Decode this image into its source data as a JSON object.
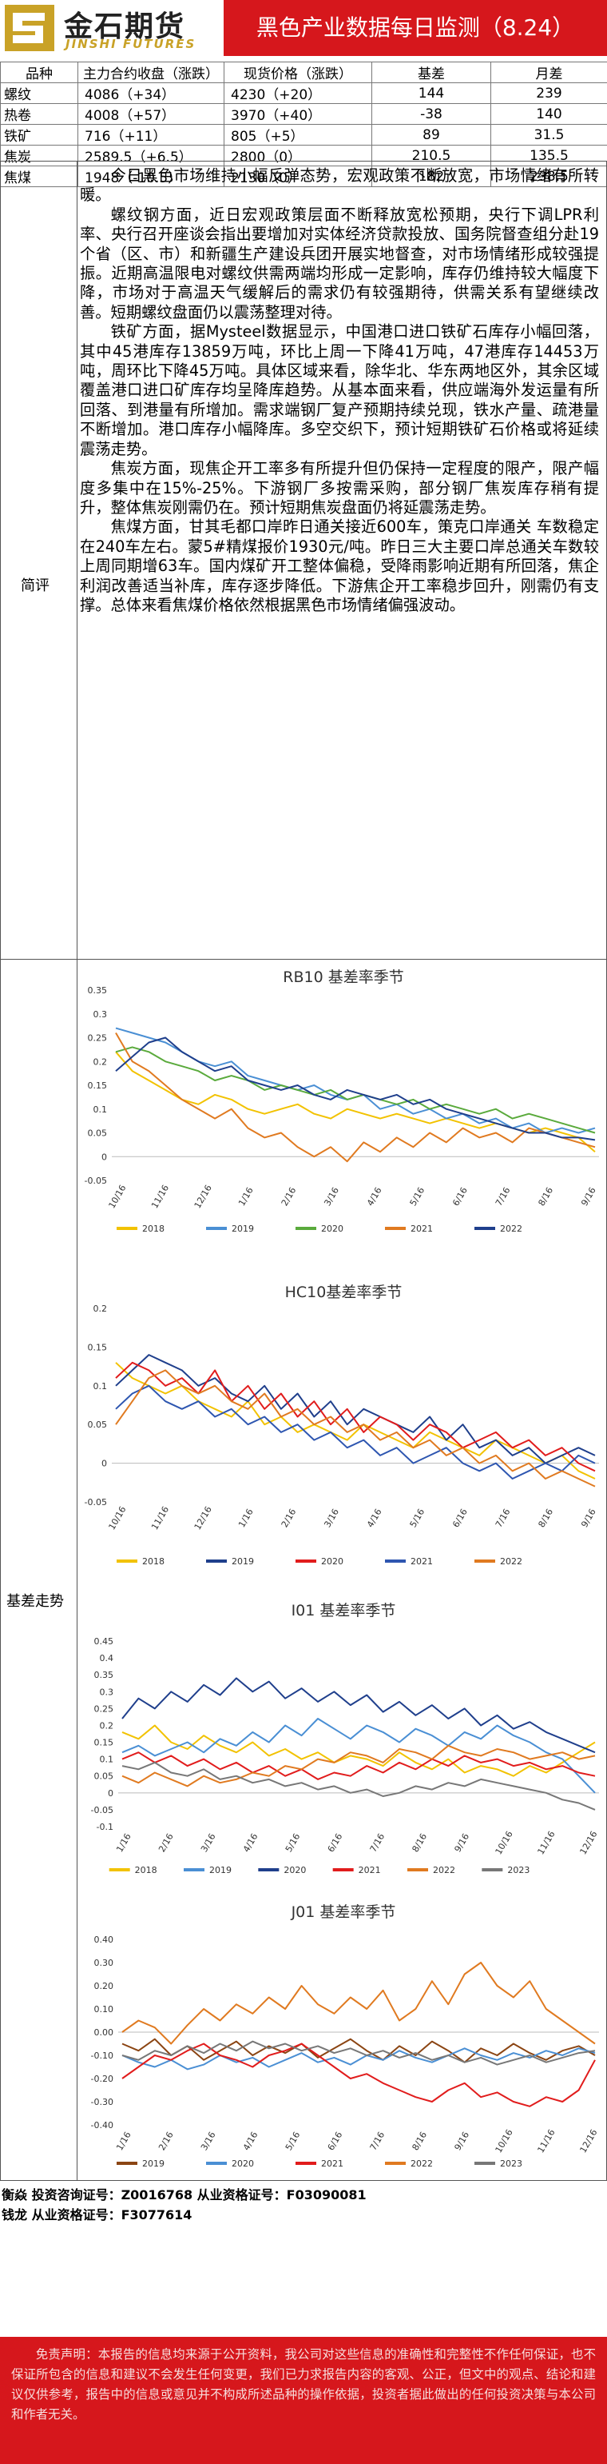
{
  "header": {
    "logo_cn": "金石期货",
    "logo_en": "JINSHI FUTURES",
    "title": "黑色产业数据每日监测（8.24）"
  },
  "quote_table": {
    "headers": [
      "品种",
      "主力合约收盘（涨跌）",
      "现货价格（涨跌）",
      "基差",
      "月差"
    ],
    "rows": [
      [
        "螺纹",
        "4086（+34）",
        "4230（+20）",
        "144",
        "239"
      ],
      [
        "热卷",
        "4008（+57）",
        "3970（+40）",
        "-38",
        "140"
      ],
      [
        "铁矿",
        "716（+11）",
        "805（+5）",
        "89",
        "31.5"
      ],
      [
        "焦炭",
        "2589.5（+6.5）",
        "2800（0）",
        "210.5",
        "135.5"
      ],
      [
        "焦煤",
        "1948（-10.5）",
        "2130（0）",
        "182",
        "238.5"
      ]
    ]
  },
  "comment": {
    "label": "简评",
    "paragraphs": [
      "今日黑色市场维持小幅反弹态势，宏观政策不断放宽，市场情绪有所转暖。",
      "螺纹钢方面，近日宏观政策层面不断释放宽松预期，央行下调LPR利率、央行召开座谈会指出要增加对实体经济贷款投放、国务院督查组分赴19个省（区、市）和新疆生产建设兵团开展实地督查，对市场情绪形成较强提振。近期高温限电对螺纹供需两端均形成一定影响，库存仍维持较大幅度下降，市场对于高温天气缓解后的需求仍有较强期待，供需关系有望继续改善。短期螺纹盘面仍以震荡整理对待。",
      "铁矿方面，据Mysteel数据显示，中国港口进口铁矿石库存小幅回落，其中45港库存13859万吨，环比上周一下降41万吨，47港库存14453万吨，周环比下降45万吨。具体区域来看，除华北、华东两地区外，其余区域覆盖港口进口矿库存均呈降库趋势。从基本面来看，供应端海外发运量有所回落、到港量有所增加。需求端钢厂复产预期持续兑现，铁水产量、疏港量不断增加。港口库存小幅降库。多空交织下，预计短期铁矿石价格或将延续震荡走势。",
      "焦炭方面，现焦企开工率多有所提升但仍保持一定程度的限产，限产幅度多集中在15%-25%。下游钢厂多按需采购，部分钢厂焦炭库存稍有提升，整体焦炭刚需仍在。预计短期焦炭盘面仍将延震荡走势。",
      "焦煤方面，甘其毛都口岸昨日通关接近600车，策克口岸通关 车数稳定在240车左右。蒙5#精煤报价1930元/吨。昨日三大主要口岸总通关车数较上周同期增63车。国内煤矿开工整体偏稳，受降雨影响近期有所回落，焦企利润改善适当补库，库存逐步降低。下游焦企开工率稳步回升，刚需仍有支撑。总体来看焦煤价格依然根据黑色市场情绪偏强波动。"
    ]
  },
  "basis_label": "基差走势",
  "chart_data": [
    {
      "type": "line",
      "title": "RB10 基差率季节",
      "y_ticks": [
        "0.35",
        "0.3",
        "0.25",
        "0.2",
        "0.15",
        "0.1",
        "0.05",
        "0",
        "-0.05"
      ],
      "ylim": [
        -0.05,
        0.35
      ],
      "x_ticks": [
        "10/16",
        "11/16",
        "12/16",
        "1/16",
        "2/16",
        "3/16",
        "4/16",
        "5/16",
        "6/16",
        "7/16",
        "8/16",
        "9/16"
      ],
      "series": [
        {
          "name": "2018",
          "color": "#f2c200",
          "values": [
            0.22,
            0.18,
            0.16,
            0.14,
            0.12,
            0.11,
            0.13,
            0.12,
            0.1,
            0.09,
            0.1,
            0.11,
            0.09,
            0.08,
            0.1,
            0.09,
            0.08,
            0.09,
            0.08,
            0.07,
            0.08,
            0.07,
            0.06,
            0.07,
            0.06,
            0.05,
            0.06,
            0.05,
            0.04,
            0.01
          ]
        },
        {
          "name": "2019",
          "color": "#4a8fd4",
          "values": [
            0.27,
            0.26,
            0.25,
            0.24,
            0.22,
            0.2,
            0.19,
            0.2,
            0.17,
            0.16,
            0.15,
            0.14,
            0.15,
            0.13,
            0.12,
            0.13,
            0.1,
            0.11,
            0.09,
            0.1,
            0.08,
            0.09,
            0.07,
            0.08,
            0.06,
            0.07,
            0.05,
            0.06,
            0.05,
            0.06
          ]
        },
        {
          "name": "2020",
          "color": "#5aaa3c",
          "values": [
            0.22,
            0.23,
            0.22,
            0.2,
            0.19,
            0.18,
            0.16,
            0.17,
            0.16,
            0.14,
            0.15,
            0.14,
            0.13,
            0.14,
            0.12,
            0.13,
            0.12,
            0.11,
            0.12,
            0.1,
            0.11,
            0.1,
            0.09,
            0.1,
            0.08,
            0.09,
            0.08,
            0.07,
            0.06,
            0.05
          ]
        },
        {
          "name": "2021",
          "color": "#e07a20",
          "values": [
            0.26,
            0.2,
            0.18,
            0.15,
            0.12,
            0.1,
            0.08,
            0.1,
            0.06,
            0.04,
            0.05,
            0.02,
            0.0,
            0.02,
            -0.01,
            0.03,
            0.01,
            0.04,
            0.02,
            0.05,
            0.03,
            0.06,
            0.04,
            0.05,
            0.03,
            0.06,
            0.05,
            0.04,
            0.03,
            0.02
          ]
        },
        {
          "name": "2022",
          "color": "#1f3f8c",
          "values": [
            0.18,
            0.21,
            0.24,
            0.25,
            0.22,
            0.2,
            0.18,
            0.19,
            0.16,
            0.15,
            0.14,
            0.15,
            0.13,
            0.12,
            0.14,
            0.13,
            0.12,
            0.13,
            0.11,
            0.12,
            0.1,
            0.09,
            0.08,
            0.07,
            0.06,
            0.05,
            0.05,
            0.04,
            0.04,
            0.035
          ]
        }
      ]
    },
    {
      "type": "line",
      "title": "HC10基差率季节",
      "y_ticks": [
        "0.2",
        "0.15",
        "0.1",
        "0.05",
        "0",
        "-0.05"
      ],
      "ylim": [
        -0.05,
        0.2
      ],
      "x_ticks": [
        "10/16",
        "11/16",
        "12/16",
        "1/16",
        "2/16",
        "3/16",
        "4/16",
        "5/16",
        "6/16",
        "7/16",
        "8/16",
        "9/16"
      ],
      "series": [
        {
          "name": "2018",
          "color": "#f2c200",
          "values": [
            0.13,
            0.11,
            0.1,
            0.09,
            0.1,
            0.08,
            0.07,
            0.06,
            0.08,
            0.05,
            0.06,
            0.04,
            0.05,
            0.04,
            0.03,
            0.05,
            0.04,
            0.03,
            0.02,
            0.04,
            0.03,
            0.02,
            0.01,
            0.03,
            0.02,
            0.01,
            0.0,
            0.01,
            -0.01,
            -0.02
          ]
        },
        {
          "name": "2019",
          "color": "#1f3f8c",
          "values": [
            0.1,
            0.12,
            0.14,
            0.13,
            0.12,
            0.1,
            0.11,
            0.09,
            0.08,
            0.1,
            0.07,
            0.09,
            0.06,
            0.08,
            0.05,
            0.07,
            0.06,
            0.05,
            0.04,
            0.06,
            0.03,
            0.05,
            0.02,
            0.03,
            0.01,
            0.02,
            0.0,
            0.01,
            0.02,
            0.01
          ]
        },
        {
          "name": "2020",
          "color": "#e11c1c",
          "values": [
            0.11,
            0.13,
            0.12,
            0.1,
            0.11,
            0.09,
            0.12,
            0.08,
            0.1,
            0.07,
            0.09,
            0.06,
            0.08,
            0.05,
            0.07,
            0.04,
            0.06,
            0.05,
            0.03,
            0.05,
            0.04,
            0.02,
            0.03,
            0.04,
            0.02,
            0.03,
            0.01,
            0.02,
            0.0,
            -0.01
          ]
        },
        {
          "name": "2021",
          "color": "#2e56b0",
          "values": [
            0.07,
            0.09,
            0.1,
            0.08,
            0.07,
            0.08,
            0.06,
            0.07,
            0.05,
            0.06,
            0.04,
            0.05,
            0.03,
            0.04,
            0.02,
            0.03,
            0.01,
            0.02,
            0.0,
            0.01,
            0.02,
            0.0,
            -0.01,
            0.0,
            -0.02,
            -0.01,
            0.0,
            -0.01,
            0.01,
            0.0
          ]
        },
        {
          "name": "2022",
          "color": "#e07a20",
          "values": [
            0.05,
            0.08,
            0.11,
            0.12,
            0.1,
            0.09,
            0.1,
            0.08,
            0.07,
            0.09,
            0.06,
            0.07,
            0.05,
            0.06,
            0.04,
            0.05,
            0.03,
            0.04,
            0.02,
            0.03,
            0.01,
            0.02,
            0.0,
            0.01,
            -0.01,
            0.0,
            -0.02,
            -0.01,
            -0.02,
            -0.03
          ]
        }
      ]
    },
    {
      "type": "line",
      "title": "I01 基差率季节",
      "y_ticks": [
        "0.45",
        "0.4",
        "0.35",
        "0.3",
        "0.25",
        "0.2",
        "0.15",
        "0.1",
        "0.05",
        "0",
        "-0.05",
        "-0.1"
      ],
      "ylim": [
        -0.1,
        0.45
      ],
      "x_ticks": [
        "1/16",
        "2/16",
        "3/16",
        "4/16",
        "5/16",
        "6/16",
        "7/16",
        "8/16",
        "9/16",
        "10/16",
        "11/16",
        "12/16"
      ],
      "series": [
        {
          "name": "2018",
          "color": "#f2c200",
          "values": [
            0.18,
            0.16,
            0.2,
            0.15,
            0.13,
            0.17,
            0.14,
            0.12,
            0.15,
            0.11,
            0.13,
            0.1,
            0.12,
            0.09,
            0.11,
            0.1,
            0.08,
            0.12,
            0.09,
            0.07,
            0.1,
            0.06,
            0.08,
            0.07,
            0.05,
            0.08,
            0.06,
            0.09,
            0.12,
            0.15
          ]
        },
        {
          "name": "2019",
          "color": "#4a8fd4",
          "values": [
            0.12,
            0.14,
            0.11,
            0.13,
            0.15,
            0.12,
            0.16,
            0.14,
            0.18,
            0.15,
            0.2,
            0.17,
            0.22,
            0.19,
            0.16,
            0.2,
            0.18,
            0.15,
            0.19,
            0.17,
            0.14,
            0.18,
            0.16,
            0.2,
            0.17,
            0.15,
            0.12,
            0.1,
            0.05,
            0.0
          ]
        },
        {
          "name": "2020",
          "color": "#1f3f8c",
          "values": [
            0.22,
            0.28,
            0.25,
            0.3,
            0.27,
            0.32,
            0.29,
            0.34,
            0.3,
            0.33,
            0.28,
            0.31,
            0.27,
            0.3,
            0.26,
            0.29,
            0.24,
            0.27,
            0.23,
            0.26,
            0.22,
            0.25,
            0.2,
            0.23,
            0.19,
            0.21,
            0.18,
            0.16,
            0.14,
            0.12
          ]
        },
        {
          "name": "2021",
          "color": "#e11c1c",
          "values": [
            0.1,
            0.12,
            0.09,
            0.11,
            0.08,
            0.1,
            0.07,
            0.09,
            0.06,
            0.08,
            0.05,
            0.07,
            0.04,
            0.06,
            0.05,
            0.08,
            0.06,
            0.09,
            0.07,
            0.1,
            0.08,
            0.11,
            0.09,
            0.1,
            0.08,
            0.09,
            0.07,
            0.08,
            0.06,
            0.05
          ]
        },
        {
          "name": "2022",
          "color": "#e07a20",
          "values": [
            0.05,
            0.03,
            0.06,
            0.04,
            0.02,
            0.05,
            0.03,
            0.04,
            0.06,
            0.05,
            0.08,
            0.07,
            0.1,
            0.09,
            0.12,
            0.11,
            0.09,
            0.13,
            0.12,
            0.1,
            0.14,
            0.12,
            0.11,
            0.13,
            0.12,
            0.1,
            0.11,
            0.12,
            0.1,
            0.11
          ]
        },
        {
          "name": "2023",
          "color": "#777777",
          "values": [
            0.08,
            0.07,
            0.09,
            0.06,
            0.05,
            0.07,
            0.04,
            0.05,
            0.03,
            0.04,
            0.02,
            0.03,
            0.01,
            0.02,
            0.0,
            0.01,
            -0.01,
            0.0,
            0.02,
            0.01,
            0.03,
            0.02,
            0.04,
            0.03,
            0.02,
            0.01,
            0.0,
            -0.02,
            -0.03,
            -0.05
          ]
        }
      ]
    },
    {
      "type": "line",
      "title": "J01 基差率季节",
      "y_ticks": [
        "0.40",
        "0.30",
        "0.20",
        "0.10",
        "0.00",
        "-0.10",
        "-0.20",
        "-0.30",
        "-0.40"
      ],
      "ylim": [
        -0.4,
        0.4
      ],
      "x_ticks": [
        "1/16",
        "2/16",
        "3/16",
        "4/16",
        "5/16",
        "6/16",
        "7/16",
        "8/16",
        "9/16",
        "10/16",
        "11/16",
        "12/16"
      ],
      "series": [
        {
          "name": "2019",
          "color": "#8b4513",
          "values": [
            -0.05,
            -0.08,
            -0.03,
            -0.1,
            -0.06,
            -0.12,
            -0.08,
            -0.04,
            -0.1,
            -0.06,
            -0.09,
            -0.05,
            -0.11,
            -0.07,
            -0.03,
            -0.08,
            -0.12,
            -0.06,
            -0.1,
            -0.04,
            -0.08,
            -0.13,
            -0.07,
            -0.1,
            -0.05,
            -0.09,
            -0.12,
            -0.08,
            -0.06,
            -0.1
          ]
        },
        {
          "name": "2020",
          "color": "#4a8fd4",
          "values": [
            -0.1,
            -0.13,
            -0.15,
            -0.12,
            -0.16,
            -0.14,
            -0.1,
            -0.13,
            -0.11,
            -0.15,
            -0.12,
            -0.09,
            -0.13,
            -0.11,
            -0.14,
            -0.1,
            -0.12,
            -0.08,
            -0.11,
            -0.13,
            -0.1,
            -0.07,
            -0.1,
            -0.12,
            -0.09,
            -0.11,
            -0.08,
            -0.1,
            -0.07,
            -0.09
          ]
        },
        {
          "name": "2021",
          "color": "#e11c1c",
          "values": [
            -0.2,
            -0.15,
            -0.1,
            -0.12,
            -0.08,
            -0.05,
            -0.1,
            -0.12,
            -0.15,
            -0.1,
            -0.08,
            -0.05,
            -0.1,
            -0.15,
            -0.2,
            -0.18,
            -0.22,
            -0.25,
            -0.28,
            -0.3,
            -0.25,
            -0.22,
            -0.28,
            -0.26,
            -0.3,
            -0.32,
            -0.28,
            -0.3,
            -0.25,
            -0.12
          ]
        },
        {
          "name": "2022",
          "color": "#e07a20",
          "values": [
            0.0,
            0.05,
            0.02,
            -0.05,
            0.03,
            0.1,
            0.05,
            0.12,
            0.08,
            0.15,
            0.1,
            0.2,
            0.12,
            0.08,
            0.15,
            0.1,
            0.18,
            0.05,
            0.1,
            0.22,
            0.12,
            0.25,
            0.3,
            0.2,
            0.15,
            0.22,
            0.1,
            0.05,
            0.0,
            -0.05
          ]
        },
        {
          "name": "2023",
          "color": "#777777",
          "values": [
            -0.1,
            -0.12,
            -0.08,
            -0.1,
            -0.06,
            -0.09,
            -0.05,
            -0.08,
            -0.04,
            -0.07,
            -0.05,
            -0.08,
            -0.06,
            -0.09,
            -0.07,
            -0.1,
            -0.08,
            -0.11,
            -0.09,
            -0.12,
            -0.1,
            -0.13,
            -0.11,
            -0.14,
            -0.12,
            -0.1,
            -0.13,
            -0.11,
            -0.09,
            -0.08
          ]
        }
      ]
    }
  ],
  "footer": {
    "line1": "衡焱 投资咨询证号：Z0016768 从业资格证号：F03090081",
    "line2": "钱龙 从业资格证号：F3077614",
    "disclaimer": "免责声明：本报告的信息均来源于公开资料，我公司对这些信息的准确性和完整性不作任何保证，也不保证所包含的信息和建议不会发生任何变更，我们已力求报告内容的客观、公正，但文中的观点、结论和建议仅供参考，报告中的信息或意见并不构成所述品种的操作依据，投资者据此做出的任何投资决策与本公司和作者无关。"
  }
}
